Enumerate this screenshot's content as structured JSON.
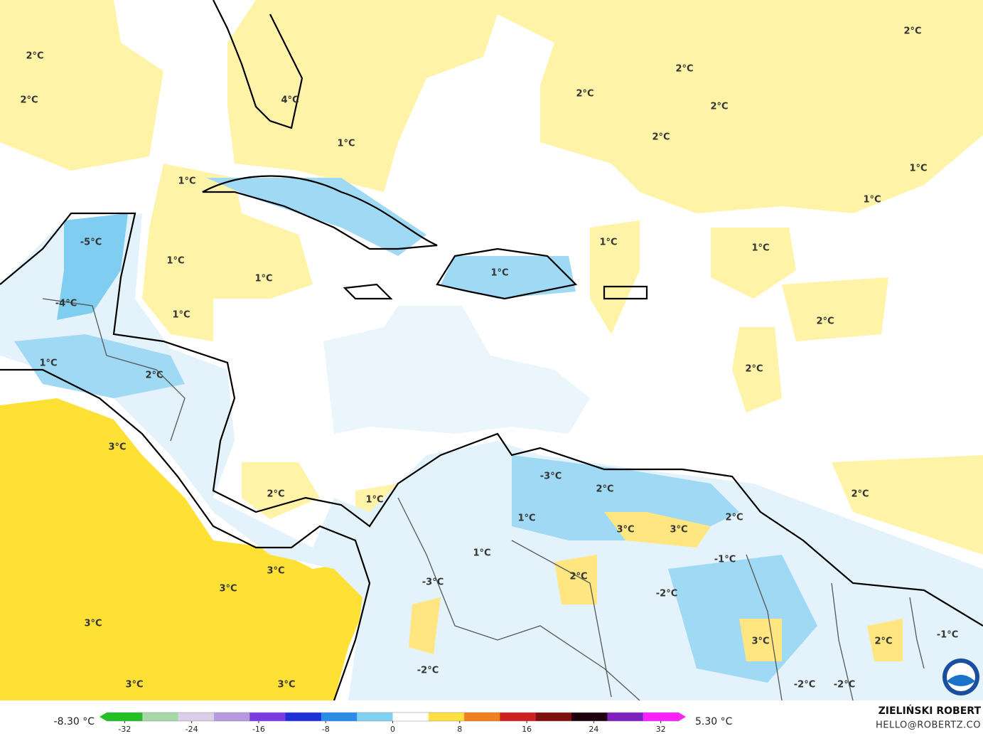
{
  "map": {
    "labels": [
      "2°C",
      "2°C",
      "4°C",
      "1°C",
      "2°C",
      "2°C",
      "2°C",
      "2°C",
      "2°C",
      "1°C",
      "1°C",
      "1°C",
      "-5°C",
      "1°C",
      "1°C",
      "1°C",
      "1°C",
      "1°C",
      "-4°C",
      "1°C",
      "2°C",
      "1°C",
      "2°C",
      "2°C",
      "3°C",
      "-3°C",
      "2°C",
      "2°C",
      "1°C",
      "2°C",
      "1°C",
      "3°C",
      "3°C",
      "2°C",
      "1°C",
      "-1°C",
      "3°C",
      "2°C",
      "-3°C",
      "3°C",
      "-2°C",
      "3°C",
      "3°C",
      "2°C",
      "-1°C",
      "-2°C",
      "3°C",
      "3°C",
      "-2°C",
      "-2°C"
    ],
    "colorbar": {
      "min_label": "-8.30 °C",
      "max_label": "5.30 °C",
      "range": [
        -35,
        35
      ],
      "ticks": [
        -32,
        -24,
        -16,
        -8,
        0,
        8,
        16,
        24,
        32
      ],
      "colors": [
        "#22c022",
        "#a8d8a8",
        "#d8d0e8",
        "#b89ae0",
        "#7a3ce0",
        "#2030d8",
        "#2a8ee8",
        "#80d0f4",
        "#ffffff",
        "#ffe040",
        "#f08020",
        "#d02020",
        "#801010",
        "#200010",
        "#8020c0",
        "#ff20ff"
      ]
    },
    "author": "ZIELIŃSKI ROBERT",
    "contact": "HELLO@ROBERTZ.CO"
  }
}
